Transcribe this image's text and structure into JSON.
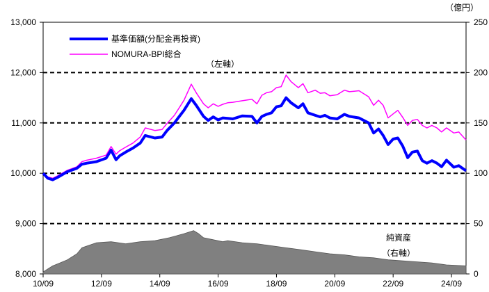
{
  "chart_data": {
    "type": "line",
    "title": "",
    "legend": {
      "placement": "top-left",
      "entries": [
        "基準価額(分配金再投資)",
        "NOMURA-BPI総合"
      ]
    },
    "left_axis": {
      "annotation": "（左軸）",
      "ylim": [
        8000,
        13000
      ],
      "ticks": [
        "8,000",
        "9,000",
        "10,000",
        "11,000",
        "12,000",
        "13,000"
      ]
    },
    "right_axis": {
      "unit_label": "（億円）",
      "ylim": [
        0,
        250
      ],
      "ticks": [
        "0",
        "50",
        "100",
        "150",
        "200",
        "250"
      ]
    },
    "x_axis": {
      "range": [
        2010.67,
        2025.17
      ],
      "ticks": [
        "10/09",
        "12/09",
        "14/09",
        "16/09",
        "18/09",
        "20/09",
        "22/09",
        "24/09"
      ]
    },
    "area_label": [
      "純資産",
      "（右軸）"
    ],
    "grid": "horizontal-dashed",
    "series": [
      {
        "name": "基準価額(分配金再投資)",
        "axis": "left",
        "color": "#0000ff",
        "x": [
          2010.67,
          2010.83,
          2011.0,
          2011.17,
          2011.5,
          2011.83,
          2012.0,
          2012.17,
          2012.5,
          2012.83,
          2013.0,
          2013.17,
          2013.3,
          2013.5,
          2013.75,
          2014.0,
          2014.17,
          2014.5,
          2014.75,
          2014.92,
          2015.17,
          2015.5,
          2015.75,
          2015.92,
          2016.17,
          2016.33,
          2016.5,
          2016.67,
          2016.83,
          2017.0,
          2017.17,
          2017.5,
          2017.83,
          2018.0,
          2018.17,
          2018.33,
          2018.5,
          2018.67,
          2018.83,
          2019.0,
          2019.17,
          2019.42,
          2019.58,
          2019.75,
          2020.0,
          2020.17,
          2020.33,
          2020.5,
          2020.75,
          2021.0,
          2021.17,
          2021.5,
          2021.83,
          2022.0,
          2022.17,
          2022.33,
          2022.5,
          2022.67,
          2022.83,
          2023.0,
          2023.17,
          2023.33,
          2023.5,
          2023.67,
          2023.83,
          2024.0,
          2024.17,
          2024.33,
          2024.5,
          2024.75,
          2024.92,
          2025.17
        ],
        "values": [
          10000,
          9900,
          9870,
          9920,
          10030,
          10100,
          10180,
          10200,
          10230,
          10300,
          10460,
          10270,
          10350,
          10420,
          10500,
          10600,
          10750,
          10700,
          10720,
          10850,
          11000,
          11250,
          11480,
          11350,
          11130,
          11050,
          11120,
          11060,
          11100,
          11090,
          11080,
          11140,
          11130,
          11000,
          11130,
          11170,
          11200,
          11320,
          11340,
          11500,
          11400,
          11300,
          11380,
          11200,
          11150,
          11120,
          11150,
          11100,
          11080,
          11170,
          11130,
          11100,
          11000,
          10800,
          10880,
          10750,
          10570,
          10680,
          10700,
          10540,
          10310,
          10420,
          10440,
          10250,
          10200,
          10250,
          10200,
          10130,
          10260,
          10120,
          10150,
          10050
        ]
      },
      {
        "name": "NOMURA-BPI総合",
        "axis": "left",
        "color": "#ff00ff",
        "x": [
          2010.67,
          2010.83,
          2011.0,
          2011.17,
          2011.5,
          2011.83,
          2012.0,
          2012.17,
          2012.5,
          2012.83,
          2013.0,
          2013.17,
          2013.3,
          2013.5,
          2013.75,
          2014.0,
          2014.17,
          2014.5,
          2014.75,
          2014.92,
          2015.17,
          2015.5,
          2015.75,
          2015.92,
          2016.17,
          2016.33,
          2016.5,
          2016.67,
          2016.83,
          2017.0,
          2017.17,
          2017.5,
          2017.83,
          2018.0,
          2018.17,
          2018.33,
          2018.5,
          2018.67,
          2018.83,
          2019.0,
          2019.17,
          2019.42,
          2019.58,
          2019.75,
          2020.0,
          2020.17,
          2020.33,
          2020.5,
          2020.75,
          2021.0,
          2021.17,
          2021.5,
          2021.83,
          2022.0,
          2022.17,
          2022.33,
          2022.5,
          2022.67,
          2022.83,
          2023.0,
          2023.17,
          2023.33,
          2023.5,
          2023.67,
          2023.83,
          2024.0,
          2024.17,
          2024.33,
          2024.5,
          2024.75,
          2024.92,
          2025.17
        ],
        "values": [
          10000,
          9930,
          9900,
          9950,
          10060,
          10130,
          10230,
          10260,
          10300,
          10360,
          10530,
          10380,
          10450,
          10520,
          10600,
          10720,
          10900,
          10850,
          10870,
          10990,
          11150,
          11450,
          11770,
          11600,
          11380,
          11300,
          11380,
          11330,
          11370,
          11400,
          11410,
          11440,
          11470,
          11380,
          11550,
          11600,
          11620,
          11700,
          11720,
          11950,
          11820,
          11700,
          11780,
          11600,
          11650,
          11590,
          11600,
          11540,
          11560,
          11650,
          11620,
          11640,
          11520,
          11350,
          11450,
          11350,
          11100,
          11180,
          11250,
          11110,
          10950,
          11050,
          11070,
          10950,
          10900,
          10950,
          10900,
          10820,
          10900,
          10800,
          10820,
          10660
        ]
      },
      {
        "name": "純資産",
        "axis": "right",
        "color": "#808080",
        "x": [
          2010.67,
          2010.83,
          2011.0,
          2011.17,
          2011.5,
          2011.83,
          2012.0,
          2012.5,
          2013.0,
          2013.5,
          2014.0,
          2014.5,
          2015.0,
          2015.5,
          2015.83,
          2016.0,
          2016.17,
          2016.5,
          2016.83,
          2017.0,
          2017.5,
          2018.0,
          2018.5,
          2019.0,
          2019.5,
          2020.0,
          2020.5,
          2021.0,
          2021.5,
          2022.0,
          2022.5,
          2023.0,
          2023.5,
          2024.0,
          2024.5,
          2025.17
        ],
        "values": [
          2,
          5,
          8,
          10,
          14,
          20,
          26,
          31,
          32,
          30,
          32,
          33,
          36,
          40,
          43,
          40,
          36,
          34,
          32,
          33,
          31,
          30,
          28,
          26,
          24,
          22,
          20,
          19,
          17,
          16,
          14,
          13,
          12,
          11,
          9,
          8
        ]
      }
    ]
  }
}
